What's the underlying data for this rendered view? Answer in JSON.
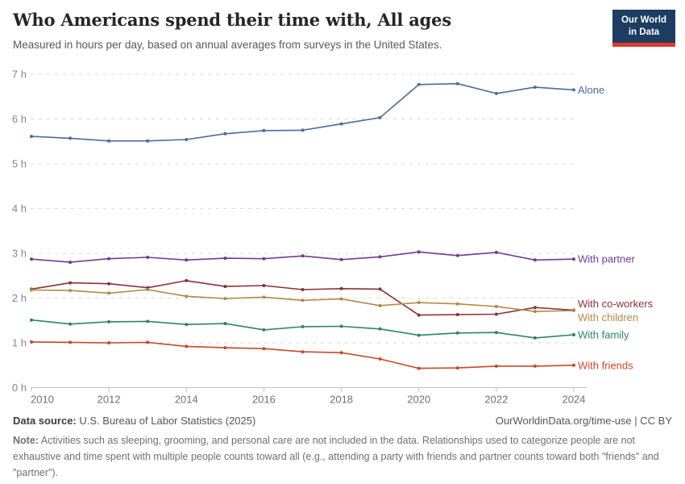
{
  "header": {
    "title": "Who Americans spend their time with, All ages",
    "subtitle": "Measured in hours per day, based on annual averages from surveys in the United States.",
    "logo": {
      "line1": "Our World",
      "line2": "in Data",
      "bg_color": "#1d3d63",
      "accent_color": "#dc3a2f"
    }
  },
  "chart_data": {
    "type": "line",
    "title": "Who Americans spend their time with, All ages",
    "xlabel": "",
    "ylabel": "hours per day",
    "ylim": [
      0,
      7
    ],
    "yticks": [
      0,
      1,
      2,
      3,
      4,
      5,
      6,
      7
    ],
    "ytick_suffix": " h",
    "grid": "horizontal-dashed",
    "legend_position": "labels-at-line-ends",
    "x": [
      2010,
      2011,
      2012,
      2013,
      2014,
      2015,
      2016,
      2017,
      2018,
      2019,
      2020,
      2021,
      2022,
      2023,
      2024
    ],
    "xticks": [
      2010,
      2012,
      2014,
      2016,
      2018,
      2020,
      2022,
      2024
    ],
    "series": [
      {
        "name": "Alone",
        "color": "#4C6A9C",
        "values": [
          5.61,
          5.57,
          5.51,
          5.51,
          5.54,
          5.67,
          5.74,
          5.75,
          5.89,
          6.03,
          6.77,
          6.79,
          6.57,
          6.71,
          6.65
        ]
      },
      {
        "name": "With partner",
        "color": "#6C3E91",
        "values": [
          2.87,
          2.8,
          2.88,
          2.91,
          2.85,
          2.89,
          2.88,
          2.94,
          2.86,
          2.92,
          3.03,
          2.95,
          3.02,
          2.85,
          2.87
        ]
      },
      {
        "name": "With co-workers",
        "color": "#8B3039",
        "values": [
          2.2,
          2.34,
          2.32,
          2.23,
          2.39,
          2.26,
          2.28,
          2.19,
          2.21,
          2.2,
          1.62,
          1.63,
          1.64,
          1.79,
          1.73
        ]
      },
      {
        "name": "With children",
        "color": "#B08A47",
        "values": [
          2.18,
          2.17,
          2.11,
          2.19,
          2.04,
          1.99,
          2.02,
          1.95,
          1.98,
          1.83,
          1.9,
          1.87,
          1.81,
          1.7,
          1.72
        ]
      },
      {
        "name": "With family",
        "color": "#2C8465",
        "values": [
          1.51,
          1.42,
          1.47,
          1.48,
          1.41,
          1.43,
          1.29,
          1.36,
          1.37,
          1.31,
          1.17,
          1.22,
          1.23,
          1.11,
          1.18
        ]
      },
      {
        "name": "With friends",
        "color": "#C8472B",
        "values": [
          1.02,
          1.01,
          1.0,
          1.01,
          0.92,
          0.89,
          0.87,
          0.8,
          0.78,
          0.64,
          0.43,
          0.44,
          0.48,
          0.48,
          0.5
        ]
      }
    ]
  },
  "footer": {
    "source_label": "Data source:",
    "source_text": "U.S. Bureau of Labor Statistics (2025)",
    "link_text": "OurWorldinData.org/time-use | CC BY",
    "note_label": "Note:",
    "note_text": "Activities such as sleeping, grooming, and personal care are not included in the data. Relationships used to categorize people are not exhaustive and time spent with multiple people counts toward all (e.g., attending a party with friends and partner counts toward both \"friends\" and \"partner\")."
  }
}
